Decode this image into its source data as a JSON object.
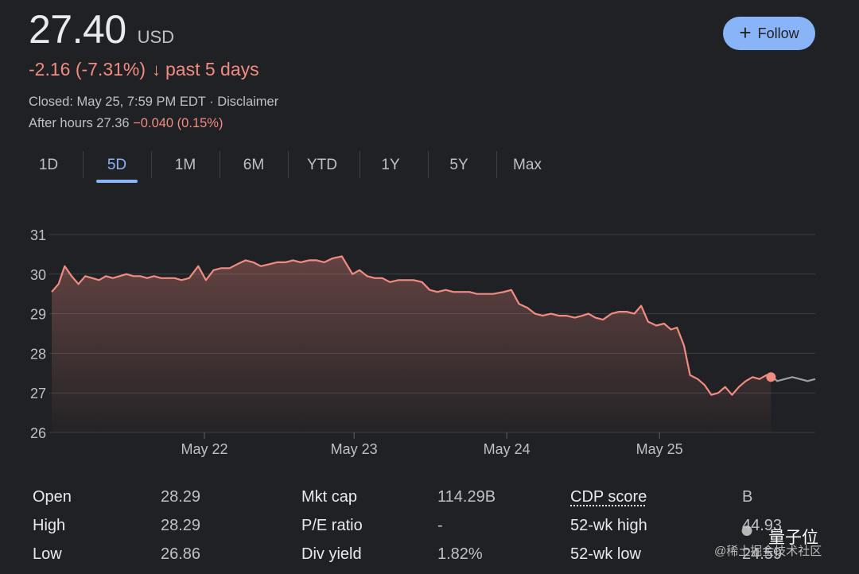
{
  "quote": {
    "price": "27.40",
    "currency": "USD",
    "change": "-2.16 (-7.31%)",
    "arrow": "↓",
    "period": "past 5 days",
    "closed_label": "Closed: May 25, 7:59 PM EDT · Disclaimer",
    "after_hours_label": "After hours 27.36",
    "after_hours_change": "−0.040 (0.15%)"
  },
  "follow_button": {
    "icon": "+",
    "label": "Follow",
    "color": "#8ab4f8"
  },
  "tabs": [
    {
      "label": "1D"
    },
    {
      "label": "5D"
    },
    {
      "label": "1M"
    },
    {
      "label": "6M"
    },
    {
      "label": "YTD"
    },
    {
      "label": "1Y"
    },
    {
      "label": "5Y"
    },
    {
      "label": "Max"
    }
  ],
  "active_tab": "5D",
  "chart_data": {
    "type": "area",
    "title": "",
    "ylim": [
      26,
      31
    ],
    "yticks": [
      26,
      27,
      28,
      29,
      30,
      31
    ],
    "x_range": [
      0,
      100
    ],
    "xticks": [
      {
        "x": 20,
        "label": "May 22"
      },
      {
        "x": 39.6,
        "label": "May 23"
      },
      {
        "x": 59.6,
        "label": "May 24"
      },
      {
        "x": 79.6,
        "label": "May 25"
      }
    ],
    "line_color": "#f28b82",
    "after_hours_color": "#9aa0a6",
    "series": [
      {
        "name": "regular",
        "points": [
          [
            0,
            29.55
          ],
          [
            0.9,
            29.75
          ],
          [
            1.7,
            30.2
          ],
          [
            2.6,
            29.95
          ],
          [
            3.5,
            29.75
          ],
          [
            4.4,
            29.95
          ],
          [
            5.3,
            29.9
          ],
          [
            6.2,
            29.85
          ],
          [
            7.1,
            29.95
          ],
          [
            8.0,
            29.9
          ],
          [
            8.9,
            29.95
          ],
          [
            9.8,
            30.0
          ],
          [
            10.7,
            29.95
          ],
          [
            11.6,
            29.95
          ],
          [
            12.5,
            29.9
          ],
          [
            13.4,
            29.95
          ],
          [
            14.3,
            29.9
          ],
          [
            15.2,
            29.9
          ],
          [
            16.1,
            29.9
          ],
          [
            17.0,
            29.85
          ],
          [
            18.0,
            29.9
          ],
          [
            19.2,
            30.2
          ],
          [
            20.2,
            29.85
          ],
          [
            21.2,
            30.1
          ],
          [
            22.2,
            30.15
          ],
          [
            23.3,
            30.15
          ],
          [
            24.3,
            30.25
          ],
          [
            25.4,
            30.35
          ],
          [
            26.4,
            30.3
          ],
          [
            27.4,
            30.2
          ],
          [
            28.5,
            30.25
          ],
          [
            29.5,
            30.3
          ],
          [
            30.6,
            30.3
          ],
          [
            31.6,
            30.35
          ],
          [
            32.6,
            30.3
          ],
          [
            33.7,
            30.35
          ],
          [
            34.7,
            30.35
          ],
          [
            35.7,
            30.3
          ],
          [
            36.8,
            30.4
          ],
          [
            38.0,
            30.45
          ],
          [
            39.4,
            30.0
          ],
          [
            40.3,
            30.1
          ],
          [
            41.3,
            29.95
          ],
          [
            42.3,
            29.9
          ],
          [
            43.3,
            29.9
          ],
          [
            44.3,
            29.8
          ],
          [
            45.4,
            29.85
          ],
          [
            46.4,
            29.85
          ],
          [
            47.4,
            29.85
          ],
          [
            48.5,
            29.8
          ],
          [
            49.5,
            29.6
          ],
          [
            50.5,
            29.55
          ],
          [
            51.6,
            29.6
          ],
          [
            52.6,
            29.55
          ],
          [
            53.6,
            29.55
          ],
          [
            54.7,
            29.55
          ],
          [
            55.7,
            29.5
          ],
          [
            56.7,
            29.5
          ],
          [
            57.8,
            29.5
          ],
          [
            59.2,
            29.55
          ],
          [
            60.2,
            29.6
          ],
          [
            61.2,
            29.25
          ],
          [
            62.3,
            29.15
          ],
          [
            63.3,
            29.0
          ],
          [
            64.3,
            28.95
          ],
          [
            65.4,
            29.0
          ],
          [
            66.4,
            28.95
          ],
          [
            67.4,
            28.95
          ],
          [
            68.5,
            28.9
          ],
          [
            69.5,
            28.95
          ],
          [
            70.3,
            29.0
          ],
          [
            71.2,
            28.9
          ],
          [
            72.2,
            28.85
          ],
          [
            73.3,
            29.0
          ],
          [
            74.3,
            29.05
          ],
          [
            75.3,
            29.05
          ],
          [
            76.3,
            29.0
          ],
          [
            77.2,
            29.2
          ],
          [
            78.1,
            28.8
          ],
          [
            79.2,
            28.7
          ],
          [
            80.2,
            28.75
          ],
          [
            81.1,
            28.6
          ],
          [
            81.9,
            28.65
          ],
          [
            82.8,
            28.2
          ],
          [
            83.6,
            27.45
          ],
          [
            84.6,
            27.35
          ],
          [
            85.5,
            27.2
          ],
          [
            86.4,
            26.95
          ],
          [
            87.3,
            27.0
          ],
          [
            88.2,
            27.15
          ],
          [
            89.1,
            26.95
          ],
          [
            90.0,
            27.15
          ],
          [
            90.9,
            27.3
          ],
          [
            91.8,
            27.4
          ],
          [
            92.7,
            27.35
          ],
          [
            93.6,
            27.45
          ],
          [
            94.2,
            27.45
          ]
        ]
      },
      {
        "name": "after-hours",
        "points": [
          [
            94.2,
            27.45
          ],
          [
            95.0,
            27.3
          ],
          [
            96.0,
            27.35
          ],
          [
            97.0,
            27.4
          ],
          [
            98.0,
            27.35
          ],
          [
            99.0,
            27.3
          ],
          [
            100,
            27.35
          ]
        ]
      }
    ],
    "marker": {
      "x": 94.2,
      "y": 27.4
    }
  },
  "stats": [
    {
      "label": "Open",
      "value": "28.29"
    },
    {
      "label": "High",
      "value": "28.29"
    },
    {
      "label": "Low",
      "value": "26.86"
    },
    {
      "label": "Mkt cap",
      "value": "114.29B"
    },
    {
      "label": "P/E ratio",
      "value": "-"
    },
    {
      "label": "Div yield",
      "value": "1.82%"
    },
    {
      "label": "CDP score",
      "value": "B"
    },
    {
      "label": "52-wk high",
      "value": "44.93"
    },
    {
      "label": "52-wk low",
      "value": "24.59"
    }
  ],
  "watermark": {
    "logo_icon": "wechat-icon",
    "brand": "量子位",
    "sub": "@稀土掘金技术社区"
  }
}
